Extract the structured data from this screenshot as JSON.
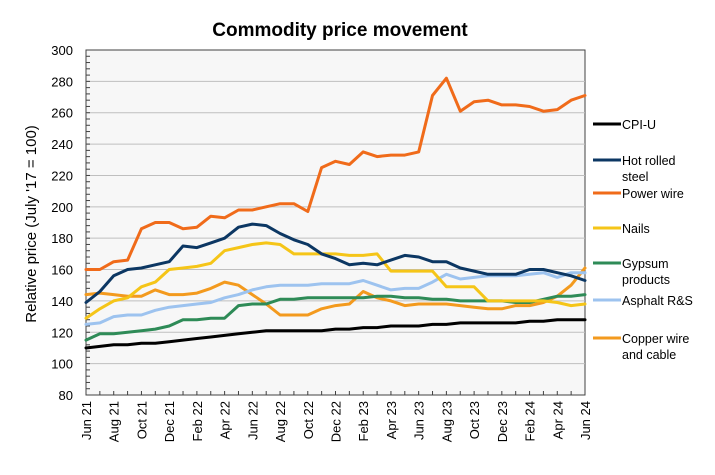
{
  "chart_data": {
    "type": "line",
    "title": "Commodity price movement",
    "xlabel": "",
    "ylabel": "Relative price (July '17 = 100)",
    "ylim": [
      80,
      300
    ],
    "yticks": [
      80,
      100,
      120,
      140,
      160,
      180,
      200,
      220,
      240,
      260,
      280,
      300
    ],
    "grid": true,
    "legend_position": "right",
    "x": [
      "Jun 21",
      "Jul 21",
      "Aug 21",
      "Sep 21",
      "Oct 21",
      "Nov 21",
      "Dec 21",
      "Jan 22",
      "Feb 22",
      "Mar 22",
      "Apr 22",
      "May 22",
      "Jun 22",
      "Jul 22",
      "Aug 22",
      "Sep 22",
      "Oct 22",
      "Nov 22",
      "Dec 22",
      "Jan 23",
      "Feb 23",
      "Mar 23",
      "Apr 23",
      "May 23",
      "Jun 23",
      "Jul 23",
      "Aug 23",
      "Sep 23",
      "Oct 23",
      "Nov 23",
      "Dec 23",
      "Jan 24",
      "Feb 24",
      "Mar 24",
      "Apr 24",
      "May 24",
      "Jun 24"
    ],
    "xtick_labels": [
      "Jun 21",
      "Aug 21",
      "Oct 21",
      "Dec 21",
      "Feb 22",
      "Apr 22",
      "Jun 22",
      "Aug 22",
      "Oct 22",
      "Dec 22",
      "Feb 23",
      "Apr 23",
      "Jun 23",
      "Aug 23",
      "Oct 23",
      "Dec 23",
      "Feb 24",
      "Apr 24",
      "Jun 24"
    ],
    "series": [
      {
        "name": "CPI-U",
        "color": "#000000",
        "values": [
          110,
          111,
          112,
          112,
          113,
          113,
          114,
          115,
          116,
          117,
          118,
          119,
          120,
          121,
          121,
          121,
          121,
          121,
          122,
          122,
          123,
          123,
          124,
          124,
          124,
          125,
          125,
          126,
          126,
          126,
          126,
          126,
          127,
          127,
          128,
          128,
          128
        ]
      },
      {
        "name": "Hot rolled steel",
        "color": "#0c3763",
        "values": [
          139,
          146,
          156,
          160,
          161,
          163,
          165,
          175,
          174,
          177,
          180,
          187,
          189,
          188,
          183,
          179,
          176,
          170,
          167,
          163,
          164,
          163,
          166,
          169,
          168,
          165,
          165,
          161,
          159,
          157,
          157,
          157,
          160,
          160,
          158,
          156,
          153
        ]
      },
      {
        "name": "Power wire",
        "color": "#f06b1a",
        "values": [
          160,
          160,
          165,
          166,
          186,
          190,
          190,
          186,
          187,
          194,
          193,
          198,
          198,
          200,
          202,
          202,
          197,
          225,
          229,
          227,
          235,
          232,
          233,
          233,
          235,
          271,
          282,
          261,
          267,
          268,
          265,
          265,
          264,
          261,
          262,
          268,
          271
        ]
      },
      {
        "name": "Nails",
        "color": "#f5c518",
        "values": [
          129,
          135,
          140,
          142,
          149,
          152,
          160,
          161,
          162,
          164,
          172,
          174,
          176,
          177,
          176,
          170,
          170,
          170,
          170,
          169,
          169,
          170,
          159,
          159,
          159,
          159,
          149,
          149,
          149,
          140,
          140,
          140,
          140,
          140,
          139,
          137,
          138
        ]
      },
      {
        "name": "Gypsum products",
        "color": "#2e8b57",
        "values": [
          115,
          119,
          119,
          120,
          121,
          122,
          124,
          128,
          128,
          129,
          129,
          137,
          138,
          138,
          141,
          141,
          142,
          142,
          142,
          142,
          142,
          143,
          143,
          142,
          142,
          141,
          141,
          140,
          140,
          140,
          140,
          139,
          139,
          141,
          143,
          143,
          144
        ]
      },
      {
        "name": "Asphalt R&S",
        "color": "#9dc3ef",
        "values": [
          125,
          126,
          130,
          131,
          131,
          134,
          136,
          137,
          138,
          139,
          142,
          144,
          147,
          149,
          150,
          150,
          150,
          151,
          151,
          151,
          153,
          150,
          147,
          148,
          148,
          152,
          157,
          154,
          155,
          156,
          156,
          156,
          157,
          158,
          155,
          158,
          158
        ]
      },
      {
        "name": "Copper wire and cable",
        "color": "#f39a1e",
        "values": [
          144,
          145,
          144,
          143,
          143,
          147,
          144,
          144,
          145,
          148,
          152,
          150,
          144,
          138,
          131,
          131,
          131,
          135,
          137,
          138,
          146,
          142,
          140,
          137,
          138,
          138,
          138,
          137,
          136,
          135,
          135,
          137,
          137,
          139,
          143,
          150,
          161
        ]
      }
    ]
  }
}
